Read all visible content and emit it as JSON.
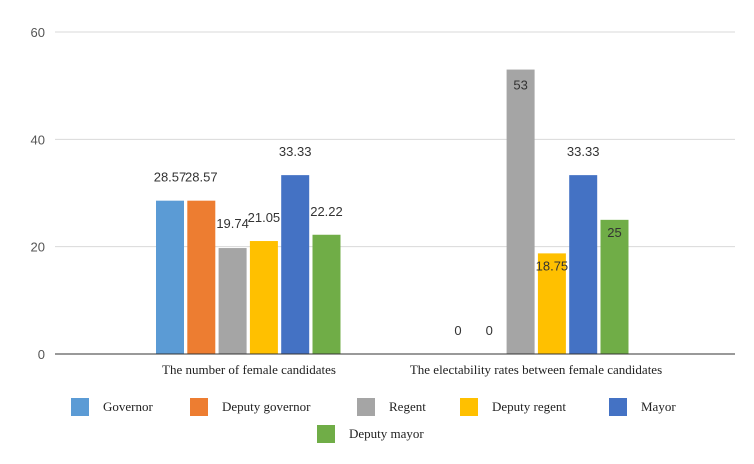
{
  "chart_data": {
    "type": "bar",
    "title": "",
    "xlabel": "",
    "ylabel": "",
    "ylim": [
      0,
      60
    ],
    "yticks": [
      0,
      20,
      40,
      60
    ],
    "grid": true,
    "legend_position": "bottom",
    "categories": [
      "The number of female candidates",
      "The electability rates between female candidates"
    ],
    "series": [
      {
        "name": "Governor",
        "color": "#5B9BD5",
        "values": [
          28.57,
          0
        ],
        "labels": [
          "28.57",
          "0"
        ]
      },
      {
        "name": "Deputy governor",
        "color": "#ED7D31",
        "values": [
          28.57,
          0
        ],
        "labels": [
          "28.57",
          "0"
        ]
      },
      {
        "name": "Regent",
        "color": "#A5A5A5",
        "values": [
          19.74,
          53
        ],
        "labels": [
          "19.74",
          "53"
        ]
      },
      {
        "name": "Deputy regent",
        "color": "#FFC000",
        "values": [
          21.05,
          18.75
        ],
        "labels": [
          "21.05",
          "18.75"
        ]
      },
      {
        "name": "Mayor",
        "color": "#4472C4",
        "values": [
          33.33,
          33.33
        ],
        "labels": [
          "33.33",
          "33.33"
        ]
      },
      {
        "name": "Deputy mayor",
        "color": "#70AD47",
        "values": [
          22.22,
          25
        ],
        "labels": [
          "22.22",
          "25"
        ]
      }
    ]
  }
}
